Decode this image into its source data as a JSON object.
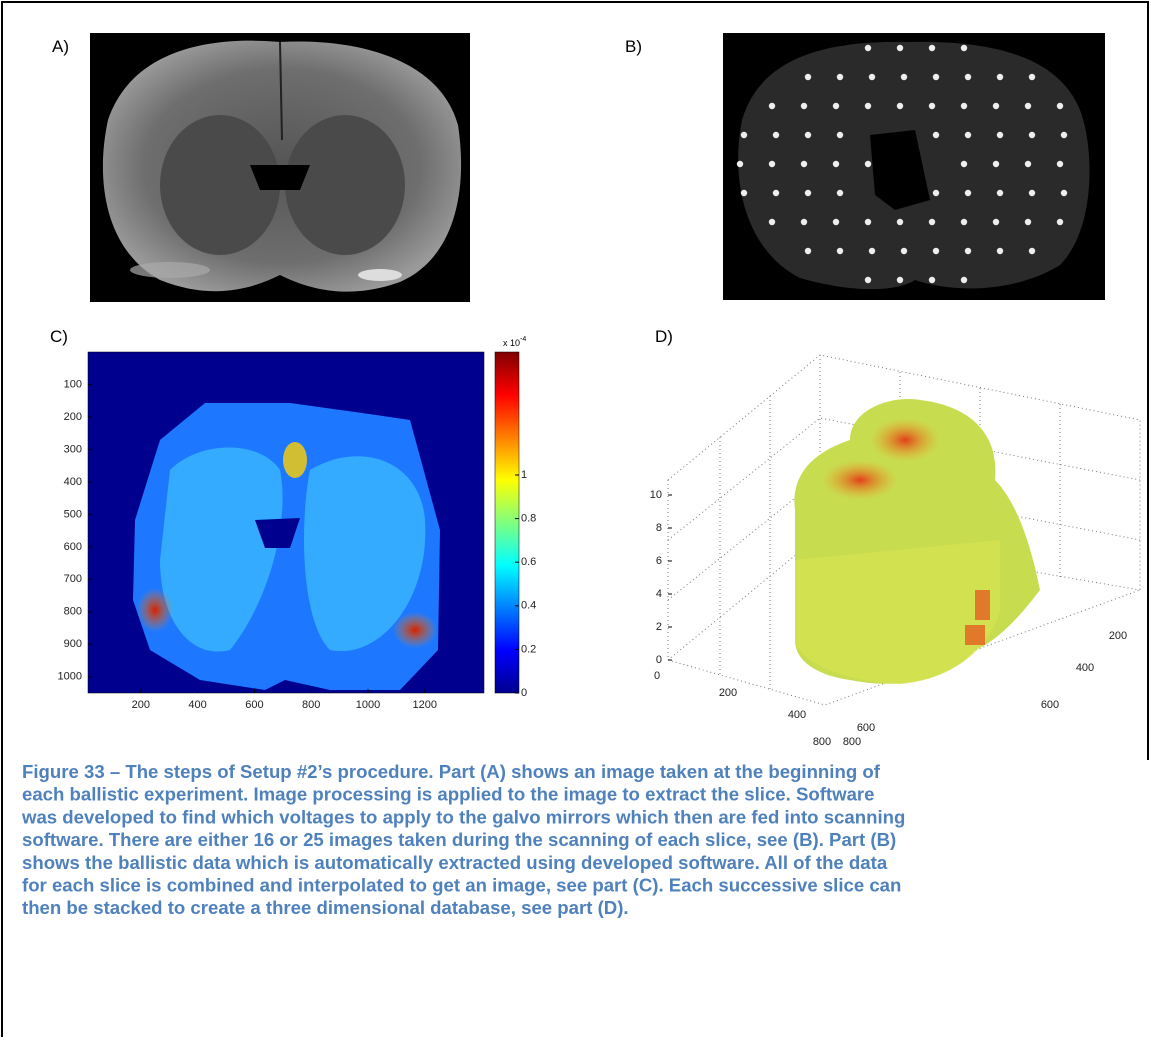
{
  "panels": [
    {
      "label": "A)"
    },
    {
      "label": "B)"
    },
    {
      "label": "C)",
      "y_ticks": [
        100,
        200,
        300,
        400,
        500,
        600,
        700,
        800,
        900,
        1000
      ],
      "x_ticks": [
        200,
        400,
        600,
        800,
        1000,
        1200
      ],
      "colorbar_ticks": [
        0,
        0.2,
        0.4,
        0.6,
        0.8,
        1
      ],
      "colorbar_multiplier": {
        "base": "x 10",
        "exponent": "-4"
      }
    },
    {
      "label": "D)",
      "z_ticks": [
        0,
        2,
        4,
        6,
        8,
        10
      ],
      "x_ticks": [
        0,
        200,
        400,
        600,
        800
      ],
      "y_ticks": [
        200,
        400,
        600,
        800
      ]
    }
  ],
  "caption": {
    "lines": [
      "Figure 33 – The steps of Setup #2’s procedure. Part (A) shows an image taken at the beginning of",
      "each ballistic experiment. Image processing is applied to the image to extract the slice. Software",
      "was developed to find which voltages to apply to the galvo mirrors which then are fed into scanning",
      "software. There are either 16 or 25 images taken during the scanning of each slice, see (B). Part (B)",
      "shows the ballistic data which is automatically extracted using developed software. All of the data",
      "for each slice is combined and interpolated to get an image, see part (C). Each successive slice can",
      "then be stacked to create a three dimensional database, see part (D)."
    ]
  }
}
